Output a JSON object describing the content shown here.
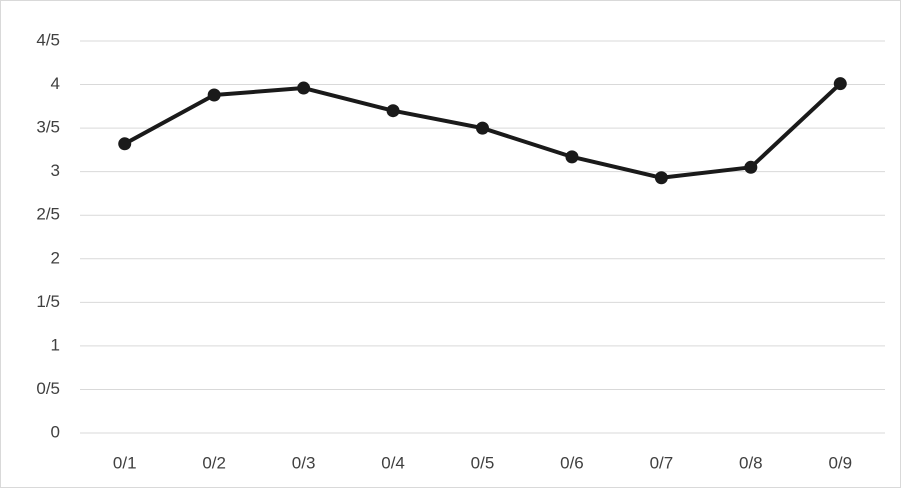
{
  "chart_data": {
    "type": "line",
    "categories": [
      "0/1",
      "0/2",
      "0/3",
      "0/4",
      "0/5",
      "0/6",
      "0/7",
      "0/8",
      "0/9"
    ],
    "values": [
      3.32,
      3.88,
      3.96,
      3.7,
      3.5,
      3.17,
      2.93,
      3.05,
      4.01
    ],
    "color": "#1a1a1a",
    "ylim": [
      0,
      4.5
    ],
    "yticks": [
      0,
      {
        "value": 0.5,
        "label": "0/5"
      },
      1,
      {
        "value": 1.5,
        "label": "1/5"
      },
      2,
      {
        "value": 2.5,
        "label": "2/5"
      },
      3,
      {
        "value": 3.5,
        "label": "3/5"
      },
      4,
      {
        "value": 4.5,
        "label": "4/5"
      }
    ],
    "grid": true
  }
}
